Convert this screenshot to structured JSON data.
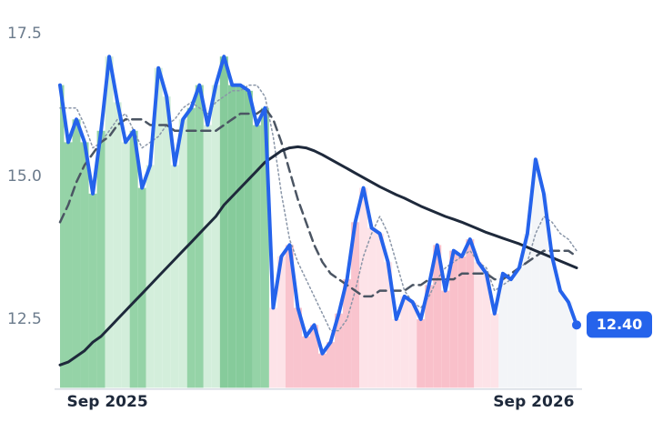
{
  "chart_data": {
    "type": "line",
    "categories": [
      null,
      null,
      null,
      null,
      null,
      "Sep 2025",
      null,
      null,
      null,
      null,
      null,
      null,
      null,
      null,
      null,
      null,
      null,
      null,
      null,
      null,
      null,
      null,
      null,
      null,
      null,
      null,
      null,
      null,
      null,
      null,
      null,
      null,
      null,
      null,
      null,
      null,
      null,
      null,
      null,
      null,
      null,
      null,
      null,
      null,
      null,
      null,
      null,
      null,
      null,
      null,
      null,
      null,
      null,
      null,
      null,
      null,
      null,
      "Sep 2026",
      null,
      null,
      null,
      null,
      null,
      null
    ],
    "ylim": [
      11.3,
      17.8
    ],
    "yticks": [
      12.5,
      {
        "value": 15,
        "label": "15.0"
      },
      17.5
    ],
    "fill_colors": [
      "#95d3a7",
      "#95d3a7",
      "#95d3a7",
      "#95d3a7",
      "#95d3a7",
      "#95d3a7",
      "#d3eedb",
      "#d3eedb",
      "#d3eedb",
      "#95d3a7",
      "#95d3a7",
      "#d3eedb",
      "#d3eedb",
      "#d3eedb",
      "#d3eedb",
      "#d3eedb",
      "#95d3a7",
      "#95d3a7",
      "#d3eedb",
      "#d3eedb",
      "#86cb9b",
      "#86cb9b",
      "#86cb9b",
      "#86cb9b",
      "#95d3a7",
      "#95d3a7",
      "#fde3e8",
      "#fde3e8",
      "#f9c4ce",
      "#f9c4ce",
      "#f9c4ce",
      "#f9c4ce",
      "#f9c4ce",
      "#f9c4ce",
      "#f9c4ce",
      "#f9c4ce",
      "#f9c4ce",
      "#fde3e8",
      "#fde3e8",
      "#fde3e8",
      "#fde3e8",
      "#fde3e8",
      "#fde3e8",
      "#fde3e8",
      "#f9c0ca",
      "#f9c0ca",
      "#f9c0ca",
      "#f9c0ca",
      "#f9c0ca",
      "#f9c0ca",
      "#f9c0ca",
      "#fde3e8",
      "#fde3e8",
      "#fde3e8",
      "#f3f5f8",
      "#f3f5f8",
      "#f3f5f8",
      "#f3f5f8",
      "#f3f5f8",
      "#f3f5f8",
      "#f3f5f8",
      "#f3f5f8",
      "#f3f5f8",
      "#f3f5f8"
    ],
    "series": [
      {
        "color": "#2563eb",
        "line_style": "solid",
        "width": 4,
        "values": [
          16.6,
          15.6,
          16.0,
          15.6,
          14.7,
          15.8,
          17.1,
          16.3,
          15.6,
          15.8,
          14.8,
          15.2,
          16.9,
          16.4,
          15.2,
          16.0,
          16.2,
          16.6,
          15.9,
          16.6,
          17.1,
          16.6,
          16.6,
          16.5,
          15.9,
          16.2,
          12.7,
          13.6,
          13.8,
          12.7,
          12.2,
          12.4,
          11.9,
          12.1,
          12.6,
          13.2,
          14.2,
          14.8,
          14.1,
          14.0,
          13.5,
          12.5,
          12.9,
          12.8,
          12.5,
          13.1,
          13.8,
          13.0,
          13.7,
          13.6,
          13.9,
          13.5,
          13.3,
          12.6,
          13.3,
          13.2,
          13.4,
          14.0,
          15.3,
          14.7,
          13.6,
          13.0,
          12.8,
          12.4
        ],
        "value_labels": [
          null,
          null,
          null,
          null,
          null,
          null,
          null,
          null,
          null,
          null,
          null,
          null,
          null,
          null,
          null,
          null,
          null,
          null,
          null,
          null,
          null,
          null,
          null,
          null,
          null,
          null,
          null,
          null,
          null,
          null,
          null,
          null,
          null,
          null,
          null,
          null,
          null,
          null,
          null,
          null,
          null,
          null,
          null,
          null,
          null,
          null,
          null,
          null,
          null,
          null,
          null,
          null,
          null,
          null,
          null,
          null,
          null,
          null,
          null,
          null,
          null,
          null,
          null,
          "12.40"
        ]
      },
      {
        "color": "#8a96a8",
        "line_style": "dotted",
        "width": 1.5,
        "values": [
          16.2,
          16.2,
          16.2,
          15.9,
          15.5,
          15.6,
          15.8,
          16.0,
          16.1,
          15.8,
          15.5,
          15.6,
          15.7,
          15.9,
          16.0,
          16.2,
          16.3,
          16.2,
          16.1,
          16.3,
          16.4,
          16.5,
          16.5,
          16.6,
          16.6,
          16.4,
          15.7,
          14.7,
          13.9,
          13.5,
          13.2,
          12.9,
          12.6,
          12.3,
          12.3,
          12.5,
          13.0,
          13.6,
          14.0,
          14.3,
          14.0,
          13.5,
          13.0,
          12.8,
          12.7,
          12.9,
          13.2,
          13.4,
          13.5,
          13.6,
          13.7,
          13.5,
          13.4,
          13.0,
          13.1,
          13.2,
          13.4,
          13.5,
          14.0,
          14.3,
          14.2,
          14.0,
          13.9,
          13.7
        ]
      },
      {
        "color": "#4b5563",
        "line_style": "dashed",
        "width": 2.5,
        "values": [
          14.2,
          14.5,
          14.9,
          15.2,
          15.4,
          15.6,
          15.7,
          15.9,
          16.0,
          16.0,
          16.0,
          15.9,
          15.9,
          15.9,
          15.8,
          15.8,
          15.8,
          15.8,
          15.8,
          15.8,
          15.9,
          16.0,
          16.1,
          16.1,
          16.1,
          16.2,
          16.0,
          15.6,
          15.1,
          14.6,
          14.2,
          13.8,
          13.5,
          13.3,
          13.2,
          13.1,
          13.0,
          12.9,
          12.9,
          13.0,
          13.0,
          13.0,
          13.0,
          13.1,
          13.1,
          13.2,
          13.2,
          13.2,
          13.2,
          13.3,
          13.3,
          13.3,
          13.3,
          13.2,
          13.2,
          13.3,
          13.4,
          13.5,
          13.6,
          13.7,
          13.7,
          13.7,
          13.7,
          13.6
        ]
      },
      {
        "color": "#1e293b",
        "line_style": "solid",
        "width": 3,
        "values": [
          11.7,
          11.75,
          11.85,
          11.95,
          12.1,
          12.2,
          12.35,
          12.5,
          12.65,
          12.8,
          12.95,
          13.1,
          13.25,
          13.4,
          13.55,
          13.7,
          13.85,
          14.0,
          14.15,
          14.3,
          14.5,
          14.65,
          14.8,
          14.95,
          15.1,
          15.25,
          15.35,
          15.45,
          15.5,
          15.52,
          15.5,
          15.45,
          15.38,
          15.3,
          15.22,
          15.14,
          15.06,
          14.98,
          14.9,
          14.82,
          14.75,
          14.68,
          14.62,
          14.55,
          14.48,
          14.42,
          14.36,
          14.3,
          14.25,
          14.2,
          14.14,
          14.08,
          14.02,
          13.97,
          13.92,
          13.87,
          13.82,
          13.76,
          13.7,
          13.64,
          13.58,
          13.52,
          13.46,
          13.4
        ]
      }
    ]
  }
}
